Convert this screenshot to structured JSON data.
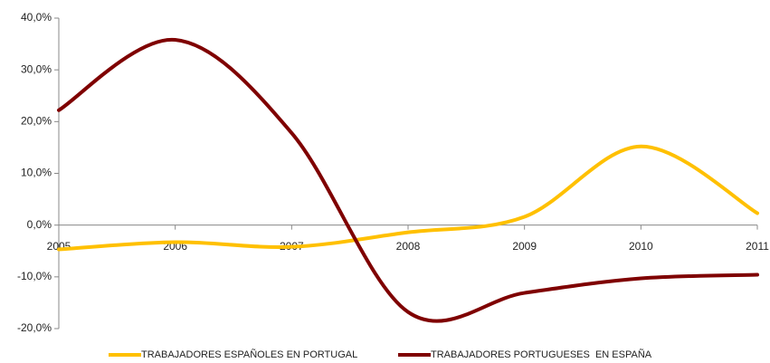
{
  "chart_data": {
    "type": "line",
    "categories": [
      "2005",
      "2006",
      "2007",
      "2008",
      "2009",
      "2010",
      "2011"
    ],
    "series": [
      {
        "name": "TRABAJADORES ESPAÑOLES EN PORTUGAL",
        "color": "#ffc000",
        "values": [
          -4.7,
          -3.3,
          -4.2,
          -1.4,
          1.6,
          15.2,
          2.3
        ]
      },
      {
        "name": "TRABAJADORES PORTUGUESES  EN ESPAÑA",
        "color": "#7f0000",
        "values": [
          22.2,
          35.8,
          17.8,
          -16.8,
          -13.1,
          -10.3,
          -9.6
        ]
      }
    ],
    "ylim": [
      -20,
      40
    ],
    "yticks": [
      {
        "value": -20,
        "label": "-20,0%"
      },
      {
        "value": -10,
        "label": "-10,0%"
      },
      {
        "value": 0,
        "label": "0,0%"
      },
      {
        "value": 10,
        "label": "10,0%"
      },
      {
        "value": 20,
        "label": "20,0%"
      },
      {
        "value": 30,
        "label": "30,0%"
      },
      {
        "value": 40,
        "label": "40,0%"
      }
    ],
    "grid": false,
    "legend": "bottom"
  }
}
